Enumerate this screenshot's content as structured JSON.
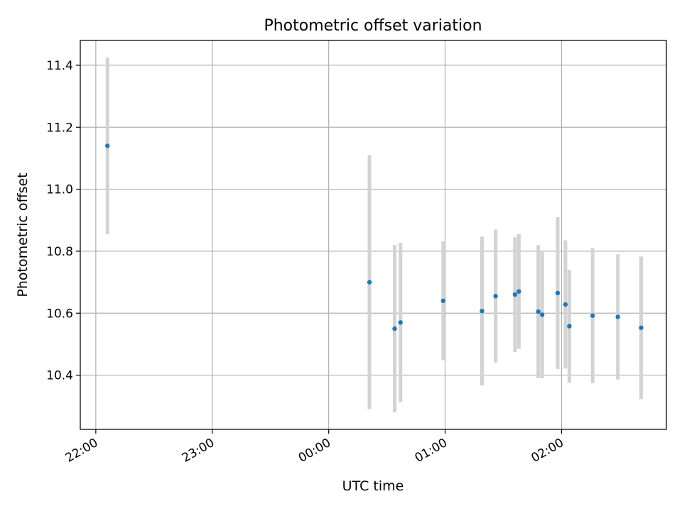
{
  "chart_data": {
    "type": "scatter",
    "title": "Photometric offset variation",
    "xlabel": "UTC time",
    "ylabel": "Photometric offset",
    "grid": true,
    "x_tick_labels": [
      "22:00",
      "23:00",
      "00:00",
      "01:00",
      "02:00"
    ],
    "x_tick_minutes": [
      0,
      60,
      120,
      180,
      240
    ],
    "xlim_minutes": [
      -8,
      294
    ],
    "y_ticks": [
      10.4,
      10.6,
      10.8,
      11.0,
      11.2,
      11.4
    ],
    "y_tick_labels": [
      "10.4",
      "10.6",
      "10.8",
      "11.0",
      "11.2",
      "11.4"
    ],
    "ylim": [
      10.225,
      11.48
    ],
    "colors": {
      "points": "#1f77b4",
      "errorbars": "#d3d3d3",
      "grid": "#b0b0b0"
    },
    "points": [
      {
        "time": "22:06",
        "y": 11.14,
        "yerr": 0.285
      },
      {
        "time": "00:21",
        "y": 10.7,
        "yerr": 0.41
      },
      {
        "time": "00:34",
        "y": 10.55,
        "yerr": 0.27
      },
      {
        "time": "00:37",
        "y": 10.57,
        "yerr": 0.257
      },
      {
        "time": "00:59",
        "y": 10.64,
        "yerr": 0.192
      },
      {
        "time": "01:19",
        "y": 10.607,
        "yerr": 0.24
      },
      {
        "time": "01:26",
        "y": 10.655,
        "yerr": 0.215
      },
      {
        "time": "01:36",
        "y": 10.66,
        "yerr": 0.185
      },
      {
        "time": "01:38",
        "y": 10.67,
        "yerr": 0.185
      },
      {
        "time": "01:48",
        "y": 10.605,
        "yerr": 0.215
      },
      {
        "time": "01:50",
        "y": 10.595,
        "yerr": 0.205
      },
      {
        "time": "01:58",
        "y": 10.665,
        "yerr": 0.245
      },
      {
        "time": "02:02",
        "y": 10.628,
        "yerr": 0.207
      },
      {
        "time": "02:04",
        "y": 10.558,
        "yerr": 0.182
      },
      {
        "time": "02:16",
        "y": 10.592,
        "yerr": 0.218
      },
      {
        "time": "02:29",
        "y": 10.588,
        "yerr": 0.202
      },
      {
        "time": "02:41",
        "y": 10.553,
        "yerr": 0.23
      }
    ]
  }
}
